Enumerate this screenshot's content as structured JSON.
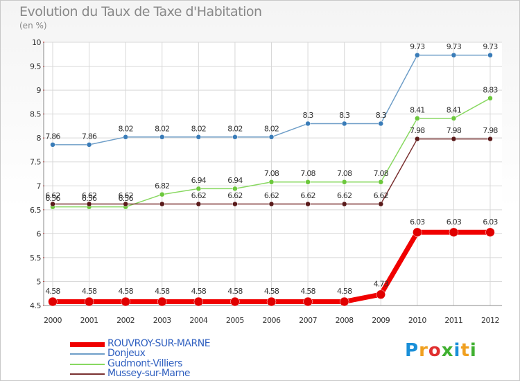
{
  "title": "Evolution du Taux de Taxe d'Habitation",
  "subtitle": "(en %)",
  "logo": {
    "letters": [
      "P",
      "r",
      "o",
      "x",
      "i",
      "t",
      "i"
    ],
    "colors": [
      "#1a8fd8",
      "#f0a020",
      "#e03030",
      "#40b030",
      "#1a8fd8",
      "#f0a020",
      "#40b030"
    ]
  },
  "chart_data": {
    "type": "line",
    "x": [
      2000,
      2001,
      2002,
      2003,
      2004,
      2005,
      2006,
      2007,
      2008,
      2009,
      2010,
      2011,
      2012
    ],
    "xticks": [
      "2000",
      "2001",
      "2002",
      "2003",
      "2004",
      "2005",
      "2006",
      "2007",
      "2008",
      "2009",
      "2010",
      "2011",
      "2012"
    ],
    "ylim": [
      4.5,
      10
    ],
    "yticks": [
      "4.5",
      "5",
      "5.5",
      "6",
      "6.5",
      "7",
      "7.5",
      "8",
      "8.5",
      "9",
      "9.5",
      "10"
    ],
    "grid": true,
    "legend": "bottom-left",
    "series": [
      {
        "name": "Donjeux",
        "color": "#6e9ec8",
        "dot": "#3a7cb8",
        "width": 1.5,
        "r": 3.5,
        "values": [
          7.86,
          7.86,
          8.02,
          8.02,
          8.02,
          8.02,
          8.02,
          8.3,
          8.3,
          8.3,
          9.73,
          9.73,
          9.73
        ],
        "labels": [
          "7.86",
          "7.86",
          "8.02",
          "8.02",
          "8.02",
          "8.02",
          "8.02",
          "8.3",
          "8.3",
          "8.3",
          "9.73",
          "9.73",
          "9.73"
        ]
      },
      {
        "name": "Gudmont-Villiers",
        "color": "#88d860",
        "dot": "#6cc83c",
        "width": 1.5,
        "r": 3.5,
        "values": [
          6.56,
          6.56,
          6.56,
          6.82,
          6.94,
          6.94,
          7.08,
          7.08,
          7.08,
          7.08,
          8.41,
          8.41,
          8.83
        ],
        "labels": [
          "6.56",
          "6.56",
          "6.56",
          "6.82",
          "6.94",
          "6.94",
          "7.08",
          "7.08",
          "7.08",
          "7.08",
          "8.41",
          "8.41",
          "8.83"
        ]
      },
      {
        "name": "Mussey-sur-Marne",
        "color": "#7a3030",
        "dot": "#5a1a1a",
        "width": 1.5,
        "r": 3.5,
        "values": [
          6.62,
          6.62,
          6.62,
          6.62,
          6.62,
          6.62,
          6.62,
          6.62,
          6.62,
          6.62,
          7.98,
          7.98,
          7.98
        ],
        "labels": [
          "6.62",
          "6.62",
          "6.62",
          "",
          "6.62",
          "6.62",
          "6.62",
          "6.62",
          "6.62",
          "6.62",
          "7.98",
          "7.98",
          "7.98"
        ]
      },
      {
        "name": "ROUVROY-SUR-MARNE",
        "color": "#f00000",
        "dot": "#e00000",
        "width": 7,
        "r": 6.5,
        "values": [
          4.58,
          4.58,
          4.58,
          4.58,
          4.58,
          4.58,
          4.58,
          4.58,
          4.58,
          4.73,
          6.03,
          6.03,
          6.03
        ],
        "labels": [
          "4.58",
          "4.58",
          "4.58",
          "4.58",
          "4.58",
          "4.58",
          "4.58",
          "4.58",
          "4.58",
          "4.73",
          "6.03",
          "6.03",
          "6.03"
        ]
      }
    ]
  },
  "legend_items": [
    {
      "name": "ROUVROY-SUR-MARNE",
      "color": "#f00000",
      "text_color": "#3060c0"
    },
    {
      "name": "Donjeux",
      "color": "#6e9ec8",
      "text_color": "#3060c0"
    },
    {
      "name": "Gudmont-Villiers",
      "color": "#88d860",
      "text_color": "#3060c0"
    },
    {
      "name": "Mussey-sur-Marne",
      "color": "#7a3030",
      "text_color": "#3060c0"
    }
  ]
}
